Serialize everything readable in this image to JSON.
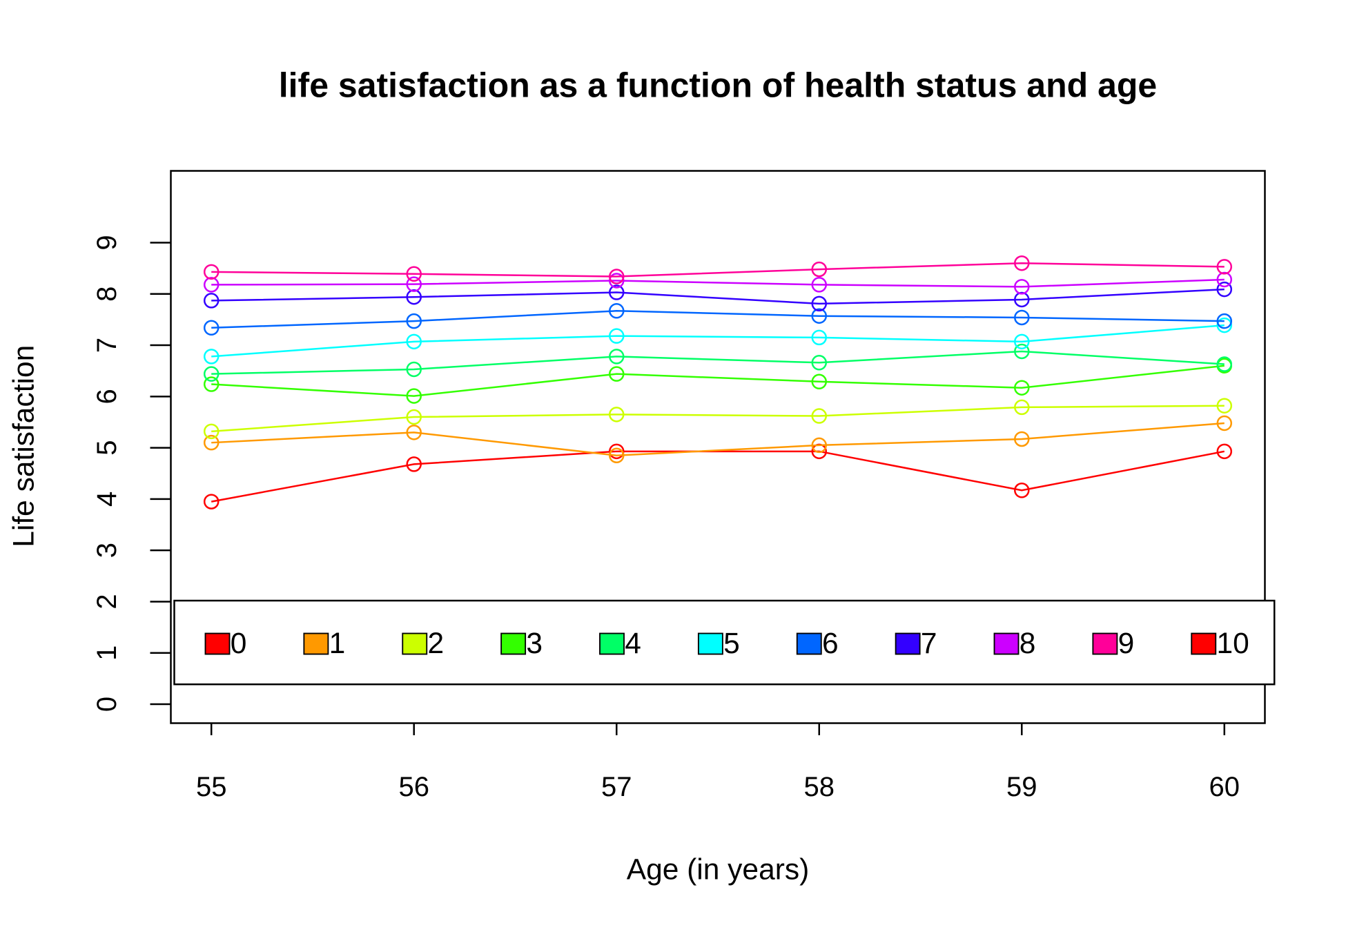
{
  "chart_data": {
    "type": "line",
    "title": "life satisfaction as a function of health status and age",
    "x_label": "Age (in years)",
    "y_label": "Life satisfaction",
    "x": [
      55,
      56,
      57,
      58,
      59,
      60
    ],
    "xlim": [
      54.8,
      60.2
    ],
    "xticks": [
      55,
      56,
      57,
      58,
      59,
      60
    ],
    "ylim": [
      -0.37,
      10.4
    ],
    "yticks": [
      0,
      1,
      2,
      3,
      4,
      5,
      6,
      7,
      8,
      9
    ],
    "legend": "bottom",
    "series": [
      {
        "name": "0",
        "color": "#FF0000",
        "values": [
          3.95,
          4.68,
          4.93,
          4.93,
          4.17,
          4.93
        ]
      },
      {
        "name": "1",
        "color": "#FF9900",
        "values": [
          5.1,
          5.3,
          4.85,
          5.05,
          5.17,
          5.48
        ]
      },
      {
        "name": "2",
        "color": "#CCFF00",
        "values": [
          5.32,
          5.6,
          5.65,
          5.62,
          5.79,
          5.82
        ]
      },
      {
        "name": "3",
        "color": "#33FF00",
        "values": [
          6.24,
          6.01,
          6.44,
          6.29,
          6.17,
          6.6
        ]
      },
      {
        "name": "4",
        "color": "#00FF66",
        "values": [
          6.44,
          6.53,
          6.78,
          6.66,
          6.88,
          6.63
        ]
      },
      {
        "name": "5",
        "color": "#00FFFF",
        "values": [
          6.78,
          7.07,
          7.18,
          7.15,
          7.07,
          7.39
        ]
      },
      {
        "name": "6",
        "color": "#0066FF",
        "values": [
          7.34,
          7.47,
          7.67,
          7.57,
          7.54,
          7.47
        ]
      },
      {
        "name": "7",
        "color": "#3300FF",
        "values": [
          7.87,
          7.94,
          8.03,
          7.81,
          7.89,
          8.09
        ]
      },
      {
        "name": "8",
        "color": "#CC00FF",
        "values": [
          8.18,
          8.19,
          8.26,
          8.18,
          8.14,
          8.28
        ]
      },
      {
        "name": "9",
        "color": "#FF0099",
        "values": [
          8.43,
          8.39,
          8.34,
          8.48,
          8.6,
          8.53
        ]
      },
      {
        "name": "10",
        "color": "#FF0000",
        "values": [
          null,
          null,
          null,
          null,
          null,
          null
        ]
      }
    ]
  }
}
